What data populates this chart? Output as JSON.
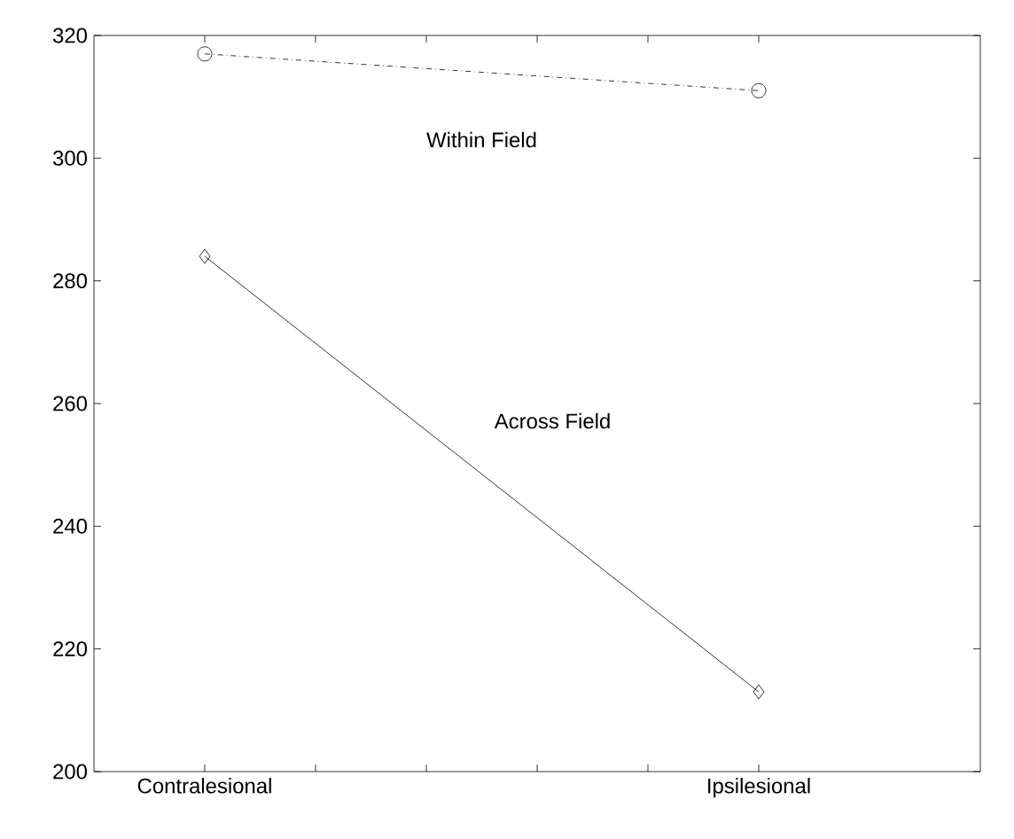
{
  "chart_data": {
    "type": "line",
    "categories": [
      "Contralesional",
      "Ipsilesional"
    ],
    "ylim": [
      200,
      320
    ],
    "yticks": [
      200,
      220,
      240,
      260,
      280,
      300,
      320
    ],
    "series": [
      {
        "name": "Within Field",
        "color": "#000000",
        "values": [
          317,
          311
        ],
        "marker": "circle",
        "line_style": "dashdot"
      },
      {
        "name": "Across Field",
        "color": "#000000",
        "values": [
          284,
          213
        ],
        "marker": "diamond",
        "line_style": "solid"
      }
    ],
    "grid": false
  }
}
